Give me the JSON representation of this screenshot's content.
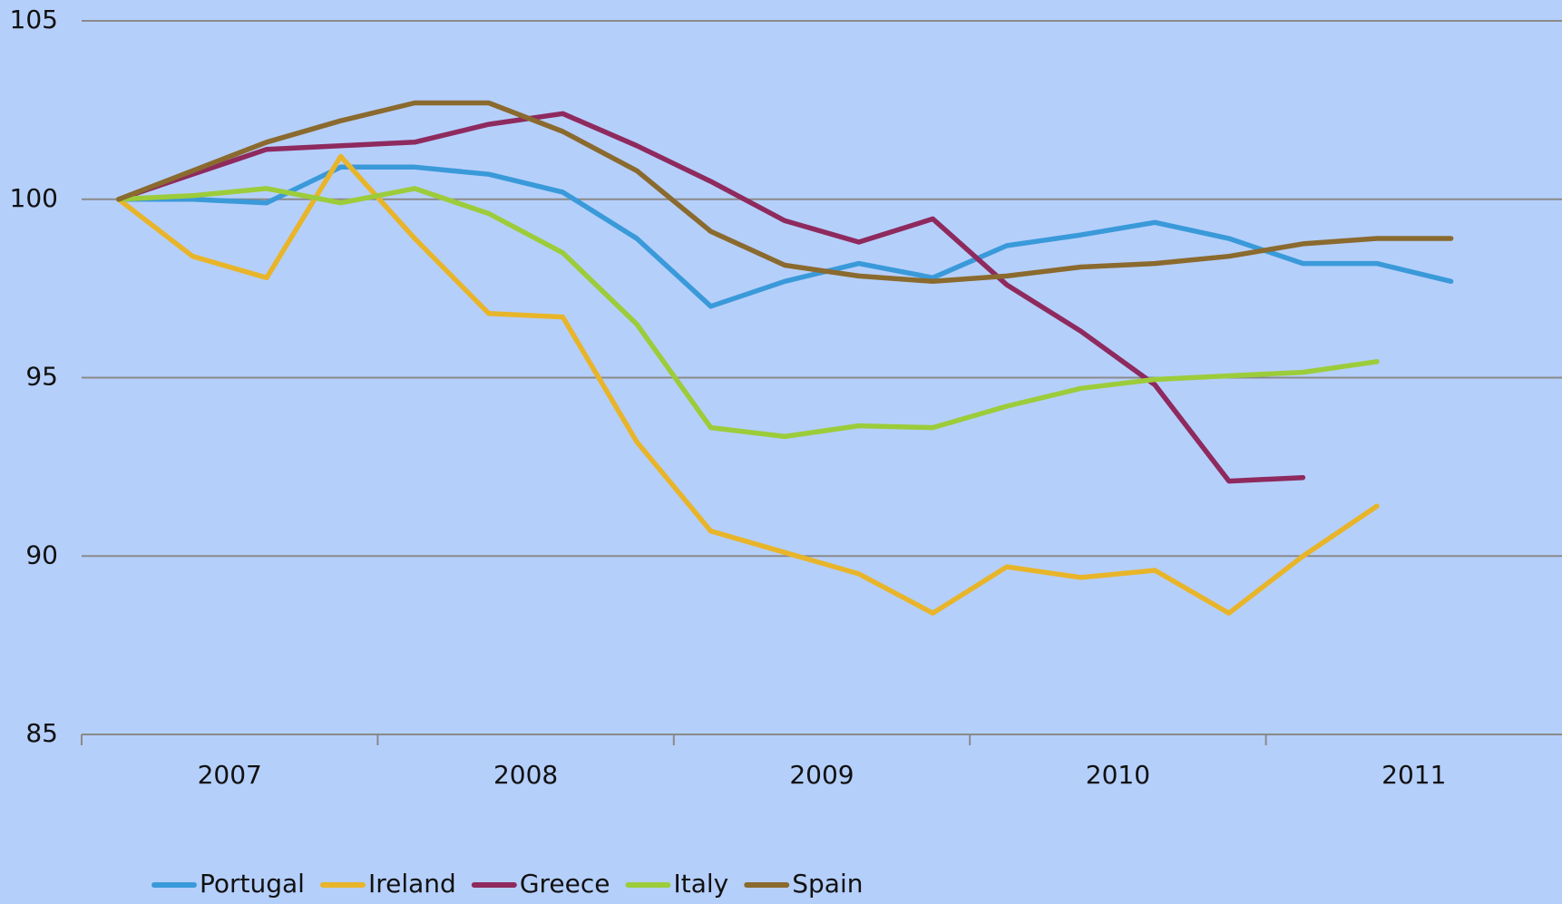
{
  "chart_data": {
    "type": "line",
    "categories": [
      "2007",
      null,
      null,
      null,
      "2008",
      null,
      null,
      null,
      "2009",
      null,
      null,
      null,
      "2010",
      null,
      null,
      null,
      "2011",
      null,
      null,
      null
    ],
    "series": [
      {
        "name": "Portugal",
        "color": "#3a9ad9",
        "values": [
          100,
          100,
          99.9,
          100.9,
          100.9,
          100.7,
          100.2,
          98.9,
          97.0,
          97.7,
          98.2,
          97.8,
          98.7,
          99.0,
          99.35,
          98.9,
          98.2,
          98.2,
          97.7,
          null
        ]
      },
      {
        "name": "Ireland",
        "color": "#e8b52a",
        "values": [
          100,
          98.4,
          97.8,
          101.2,
          98.9,
          96.8,
          96.7,
          93.2,
          90.7,
          90.1,
          89.5,
          88.4,
          89.7,
          89.4,
          89.6,
          88.4,
          90.0,
          91.4,
          null,
          null
        ]
      },
      {
        "name": "Greece",
        "color": "#8e2a5e",
        "values": [
          100,
          100.7,
          101.4,
          101.5,
          101.6,
          102.1,
          102.4,
          101.5,
          100.5,
          99.4,
          98.8,
          99.45,
          97.6,
          96.3,
          94.8,
          92.1,
          92.2,
          null,
          null,
          null
        ]
      },
      {
        "name": "Italy",
        "color": "#9ccc3a",
        "values": [
          100,
          100.1,
          100.3,
          99.9,
          100.3,
          99.6,
          98.5,
          96.5,
          93.6,
          93.35,
          93.65,
          93.6,
          94.2,
          94.7,
          94.95,
          95.05,
          95.15,
          95.45,
          null,
          null
        ]
      },
      {
        "name": "Spain",
        "color": "#8a6a2e",
        "values": [
          100,
          100.8,
          101.6,
          102.2,
          102.7,
          102.7,
          101.9,
          100.8,
          99.1,
          98.15,
          97.85,
          97.7,
          97.85,
          98.1,
          98.2,
          98.4,
          98.75,
          98.9,
          98.9,
          null
        ]
      }
    ],
    "ylim": [
      85,
      105
    ],
    "yticks": [
      85,
      90,
      95,
      100,
      105
    ],
    "grid": true,
    "legend": "bottom"
  }
}
